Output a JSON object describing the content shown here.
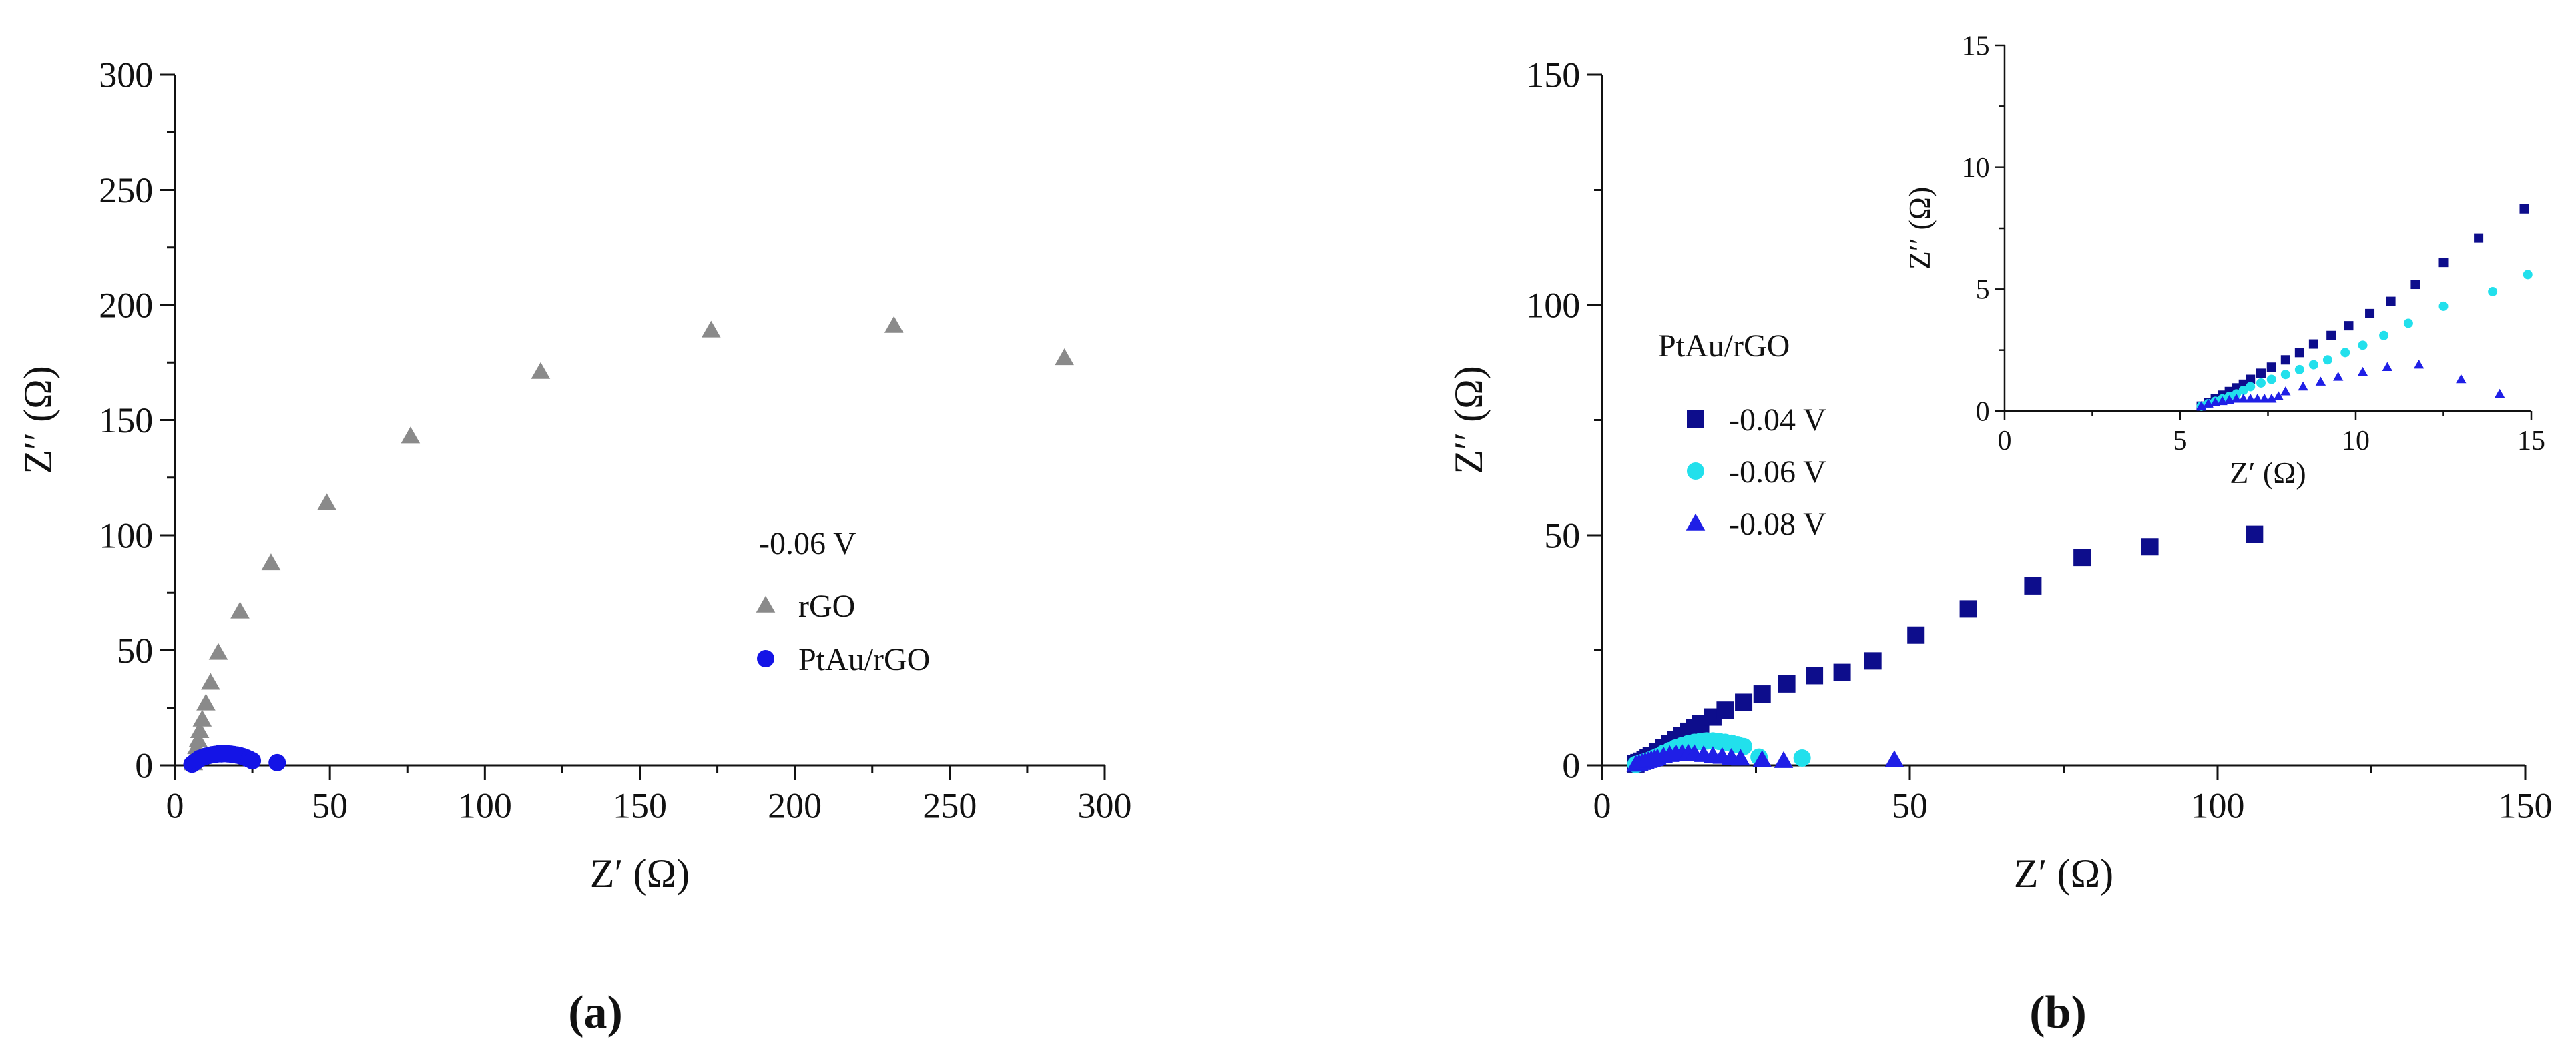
{
  "figure": {
    "colors": {
      "axis": "#111111",
      "rGO": "#8a8a8a",
      "PtAu": "#1414e6",
      "v004": "#0d0d8c",
      "v006": "#22e0ec",
      "v008": "#1f1fe6"
    }
  },
  "chart_data": [
    {
      "id": "a",
      "panel_label": "(a)",
      "type": "scatter",
      "xlabel": "Z′ (Ω)",
      "ylabel": "Z′′ (Ω)",
      "xlim": [
        0,
        300
      ],
      "ylim": [
        0,
        300
      ],
      "xticks": [
        0,
        50,
        100,
        150,
        200,
        250,
        300
      ],
      "yticks": [
        0,
        50,
        100,
        150,
        200,
        250,
        300
      ],
      "grid": false,
      "legend": {
        "title": "-0.06 V",
        "placement": "center-right"
      },
      "series": [
        {
          "name": "rGO",
          "marker": "triangle",
          "color": "#8a8a8a",
          "x": [
            6,
            6.3,
            6.6,
            7,
            7.5,
            8,
            8.8,
            10,
            11.5,
            14,
            21,
            31,
            49,
            76,
            118,
            173,
            232,
            287
          ],
          "y": [
            1,
            3,
            5,
            8,
            11,
            15,
            20,
            27,
            36,
            49,
            67,
            88,
            114,
            143,
            171,
            189,
            191,
            177
          ]
        },
        {
          "name": "PtAu/rGO",
          "marker": "circle",
          "color": "#1414e6",
          "x": [
            5.5,
            6,
            6.5,
            7,
            7.5,
            8,
            9,
            10,
            11,
            12,
            13,
            14,
            15,
            16,
            17,
            18,
            19,
            20,
            21,
            22,
            23,
            24,
            25,
            33
          ],
          "y": [
            0.5,
            1,
            1.5,
            2,
            2.5,
            3,
            3.5,
            4,
            4.3,
            4.6,
            4.8,
            5,
            5,
            5.1,
            5,
            4.9,
            4.7,
            4.5,
            4.2,
            3.8,
            3.3,
            2.7,
            2,
            1.2
          ]
        }
      ]
    },
    {
      "id": "b",
      "panel_label": "(b)",
      "type": "scatter",
      "xlabel": "Z′ (Ω)",
      "ylabel": "Z′′ (Ω)",
      "xlim": [
        0,
        150
      ],
      "ylim": [
        0,
        150
      ],
      "xticks": [
        0,
        50,
        100,
        150
      ],
      "yticks": [
        0,
        50,
        100,
        150
      ],
      "grid": false,
      "legend": {
        "title": "PtAu/rGO",
        "placement": "left"
      },
      "series": [
        {
          "name": "-0.04 V",
          "marker": "square",
          "color": "#0d0d8c",
          "x": [
            5.5,
            6,
            6.5,
            7,
            7.5,
            8,
            9,
            10,
            11,
            12,
            13,
            14,
            15,
            16,
            18,
            20,
            23,
            26,
            30,
            34.5,
            39,
            44,
            51,
            59.5,
            70,
            78,
            89,
            106
          ],
          "y": [
            0.3,
            0.6,
            0.9,
            1.3,
            1.7,
            2.1,
            3,
            3.8,
            4.7,
            5.6,
            6.5,
            7.4,
            8.2,
            9,
            10.5,
            12,
            13.7,
            15.5,
            17.7,
            19.5,
            20.2,
            22.7,
            28.3,
            34,
            39,
            45.2,
            47.5,
            50.2
          ]
        },
        {
          "name": "-0.06 V",
          "marker": "circle",
          "color": "#22e0ec",
          "x": [
            5.5,
            6,
            6.5,
            7,
            7.5,
            8,
            8.5,
            9,
            10,
            11,
            12,
            13,
            14,
            15,
            16,
            17,
            18,
            19,
            20,
            21,
            22,
            23,
            25.5,
            32.5
          ],
          "y": [
            0.2,
            0.4,
            0.6,
            0.8,
            1,
            1.3,
            1.6,
            1.9,
            2.6,
            3.2,
            3.8,
            4.3,
            4.7,
            5,
            5.2,
            5.3,
            5.3,
            5.2,
            5,
            4.8,
            4.5,
            4.1,
            1.8,
            1.6
          ]
        },
        {
          "name": "-0.08 V",
          "marker": "triangle",
          "color": "#1f1fe6",
          "x": [
            5.5,
            6,
            6.5,
            7,
            7.5,
            8,
            8.5,
            9,
            10,
            11,
            12,
            13,
            14,
            15,
            16.5,
            18,
            19.5,
            21,
            22.5,
            26,
            29.5,
            47.5
          ],
          "y": [
            0.2,
            0.4,
            0.6,
            0.8,
            1,
            1.2,
            1.4,
            1.6,
            2,
            2.3,
            2.5,
            2.6,
            2.6,
            2.5,
            2.3,
            2.1,
            1.9,
            1.7,
            1.5,
            1.2,
            1,
            1.2
          ]
        }
      ],
      "inset": {
        "xlabel": "Z′ (Ω)",
        "ylabel": "Z′′ (Ω)",
        "xlim": [
          0,
          15
        ],
        "ylim": [
          0,
          15
        ],
        "xticks": [
          0,
          5,
          10,
          15
        ],
        "yticks": [
          0,
          5,
          10,
          15
        ],
        "series": [
          {
            "name": "-0.04 V",
            "marker": "square",
            "color": "#0d0d8c",
            "x": [
              5.6,
              5.8,
              6,
              6.2,
              6.4,
              6.6,
              6.8,
              7,
              7.3,
              7.6,
              8,
              8.4,
              8.8,
              9.3,
              9.8,
              10.4,
              11,
              11.7,
              12.5,
              13.5,
              14.8
            ],
            "y": [
              0.2,
              0.35,
              0.5,
              0.65,
              0.8,
              0.95,
              1.1,
              1.3,
              1.55,
              1.8,
              2.1,
              2.4,
              2.75,
              3.1,
              3.5,
              4,
              4.5,
              5.2,
              6.1,
              7.1,
              8.3
            ]
          },
          {
            "name": "-0.06 V",
            "marker": "circle",
            "color": "#22e0ec",
            "x": [
              5.6,
              5.8,
              6,
              6.2,
              6.4,
              6.6,
              6.8,
              7,
              7.3,
              7.6,
              8,
              8.4,
              8.8,
              9.2,
              9.7,
              10.2,
              10.8,
              11.5,
              12.5,
              13.9,
              14.9
            ],
            "y": [
              0.2,
              0.3,
              0.4,
              0.5,
              0.6,
              0.7,
              0.85,
              1,
              1.15,
              1.3,
              1.5,
              1.7,
              1.9,
              2.1,
              2.4,
              2.7,
              3.1,
              3.6,
              4.3,
              4.9,
              5.6
            ]
          },
          {
            "name": "-0.08 V",
            "marker": "triangle",
            "color": "#1f1fe6",
            "x": [
              5.6,
              5.8,
              6,
              6.2,
              6.4,
              6.6,
              6.8,
              7,
              7.2,
              7.4,
              7.6,
              7.8,
              8,
              8.5,
              9,
              9.5,
              10.2,
              10.9,
              11.8,
              13,
              14.1
            ],
            "y": [
              0.2,
              0.3,
              0.35,
              0.4,
              0.45,
              0.5,
              0.5,
              0.5,
              0.5,
              0.5,
              0.5,
              0.6,
              0.8,
              1,
              1.2,
              1.4,
              1.6,
              1.8,
              1.9,
              1.3,
              0.7
            ]
          }
        ]
      }
    }
  ]
}
